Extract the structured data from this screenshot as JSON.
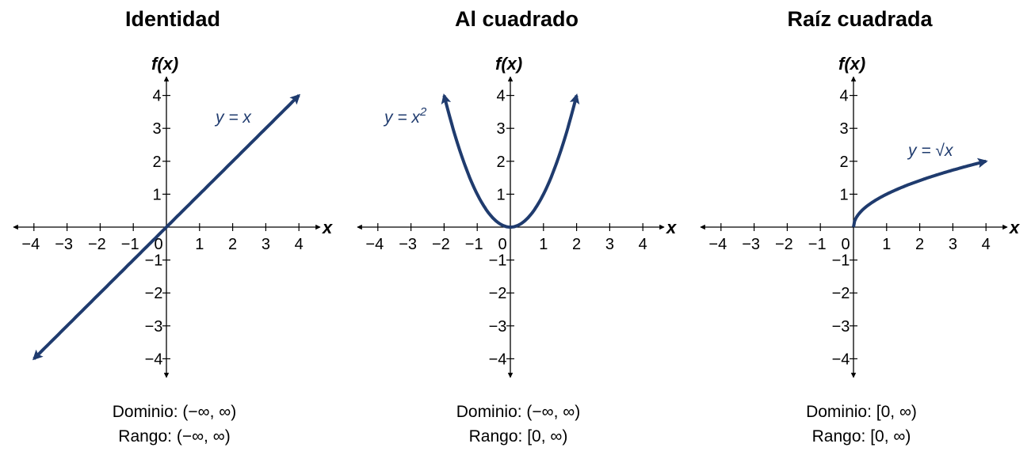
{
  "chart_data": [
    {
      "type": "line",
      "title": "Identidad",
      "xlabel": "x",
      "ylabel": "f(x)",
      "xlim": [
        -4,
        4
      ],
      "ylim": [
        -4,
        4
      ],
      "xticks": [
        "−4",
        "−3",
        "−2",
        "−1",
        "0",
        "1",
        "2",
        "3",
        "4"
      ],
      "yticks": [
        "−4",
        "−3",
        "−2",
        "−1",
        "1",
        "2",
        "3",
        "4"
      ],
      "function": "x",
      "x_range": [
        -4,
        4
      ],
      "arrows": "both",
      "label": "y = x",
      "domain_text": "Dominio:  (−∞, ∞)",
      "range_text": "Rango: (−∞, ∞)",
      "color": "#1f3b6e"
    },
    {
      "type": "line",
      "title": "Al cuadrado",
      "xlabel": "x",
      "ylabel": "f(x)",
      "xlim": [
        -4,
        4
      ],
      "ylim": [
        -4,
        4
      ],
      "xticks": [
        "−4",
        "−3",
        "−2",
        "−1",
        "0",
        "1",
        "2",
        "3",
        "4"
      ],
      "yticks": [
        "−4",
        "−3",
        "−2",
        "−1",
        "1",
        "2",
        "3",
        "4"
      ],
      "function": "x^2",
      "x_range": [
        -2,
        2
      ],
      "arrows": "both",
      "label": "y = x",
      "label_sup": "2",
      "domain_text": "Dominio: (−∞, ∞)",
      "range_text": "Rango: [0, ∞)",
      "color": "#1f3b6e"
    },
    {
      "type": "line",
      "title": "Raíz cuadrada",
      "xlabel": "x",
      "ylabel": "f(x)",
      "xlim": [
        -4,
        4
      ],
      "ylim": [
        -4,
        4
      ],
      "xticks": [
        "−4",
        "−3",
        "−2",
        "−1",
        "0",
        "1",
        "2",
        "3",
        "4"
      ],
      "yticks": [
        "−4",
        "−3",
        "−2",
        "−1",
        "1",
        "2",
        "3",
        "4"
      ],
      "function": "sqrt(x)",
      "x_range": [
        0,
        4
      ],
      "arrows": "end",
      "label": "y = √x",
      "domain_text": "Dominio: [0, ∞)",
      "range_text": "Rango: [0, ∞)",
      "color": "#1f3b6e"
    }
  ]
}
